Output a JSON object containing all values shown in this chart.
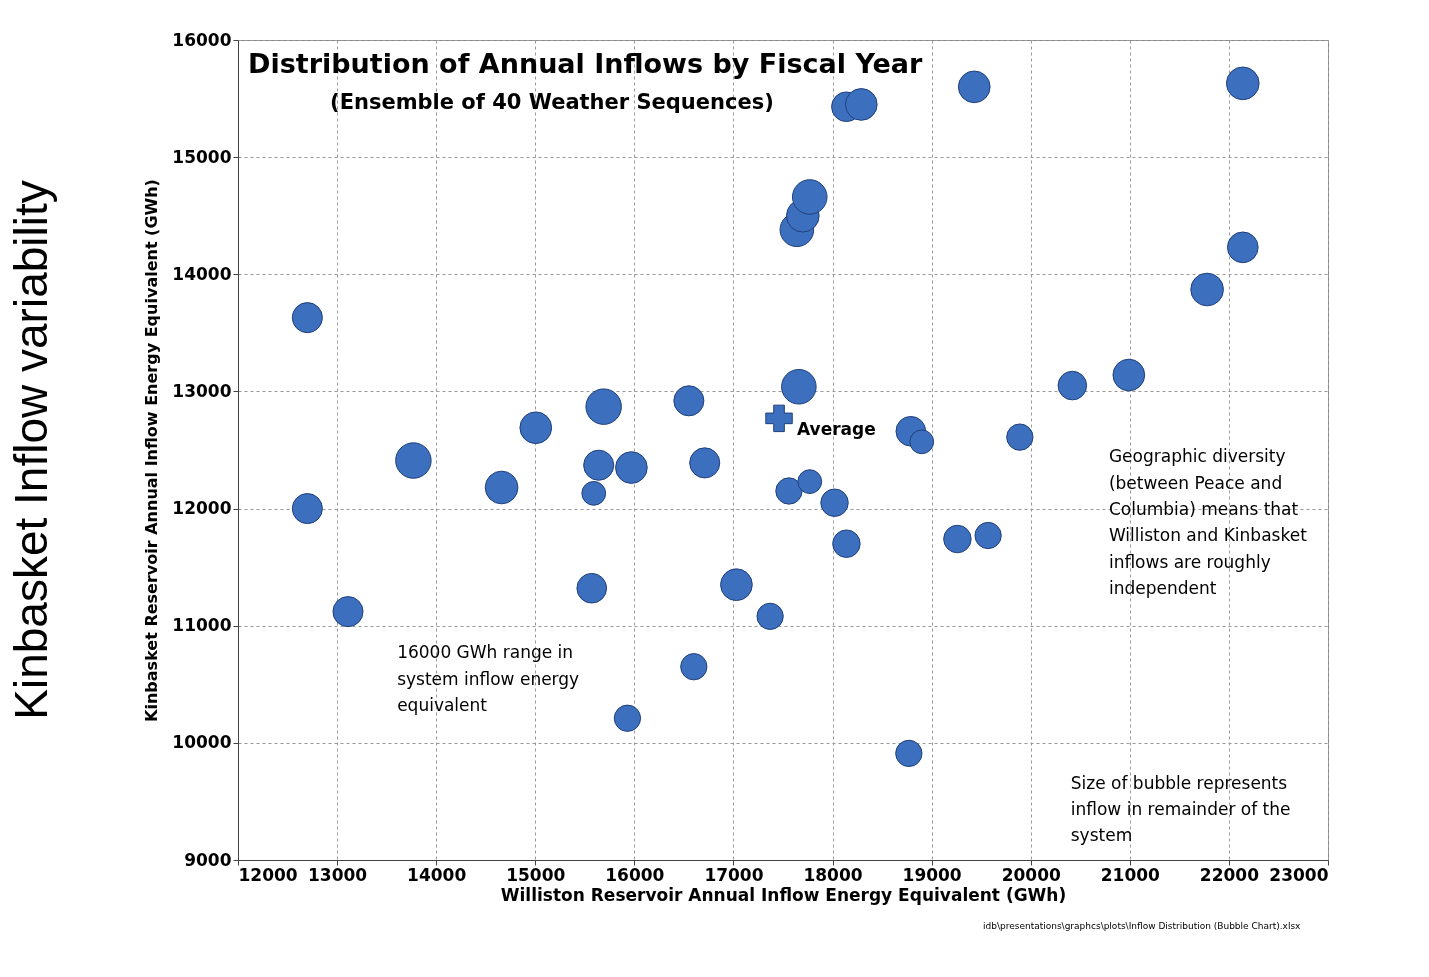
{
  "chart_data": {
    "type": "bubble",
    "title": "Distribution of Annual Inflows by Fiscal Year",
    "subtitle": "(Ensemble of 40 Weather Sequences)",
    "xlabel": "Williston Reservoir Annual  Inflow Energy Equivalent (GWh)",
    "ylabel": "Kinbasket Reservoir Annual Inflow Energy Equivalent (GWh)",
    "series": [
      {
        "color": "#3d6fbf",
        "marker": "circle",
        "x": [
          12700,
          12700,
          13110,
          13770,
          14660,
          15005,
          15570,
          15590,
          15640,
          15690,
          15970,
          15930,
          16550,
          16600,
          16710,
          17030,
          17370,
          17560,
          17770,
          18020,
          18140,
          17660,
          17640,
          17700,
          17770,
          18140,
          18290,
          18790,
          18900,
          18770,
          19260,
          19570,
          19430,
          19890,
          20420,
          20990,
          21780,
          22140,
          22140
        ],
        "values": [
          13630,
          12000,
          11120,
          12410,
          12180,
          12690,
          11320,
          12130,
          12370,
          12870,
          12350,
          10210,
          12920,
          10650,
          12390,
          11350,
          11080,
          12150,
          12230,
          12050,
          11700,
          13040,
          14380,
          14500,
          14660,
          15430,
          15450,
          12660,
          12570,
          9910,
          11740,
          11770,
          15600,
          12610,
          13050,
          13140,
          13870,
          14230,
          15630
        ],
        "sizes": [
          0.72,
          0.72,
          0.72,
          1,
          0.85,
          0.8,
          0.7,
          0.45,
          0.72,
          1,
          0.8,
          0.55,
          0.72,
          0.55,
          0.72,
          0.8,
          0.55,
          0.55,
          0.45,
          0.6,
          0.6,
          0.95,
          0.9,
          0.85,
          0.95,
          0.7,
          0.8,
          0.7,
          0.45,
          0.55,
          0.6,
          0.55,
          0.8,
          0.55,
          0.65,
          0.8,
          0.85,
          0.75,
          0.85
        ]
      },
      {
        "type": "scatter",
        "name": "Average",
        "color": "#3d6fbf",
        "marker": "cross",
        "x": [
          17460
        ],
        "values": [
          12770
        ]
      }
    ],
    "xlim": [
      12000,
      23000
    ],
    "xticks": [
      12000,
      13000,
      14000,
      15000,
      16000,
      17000,
      18000,
      19000,
      20000,
      21000,
      22000,
      23000
    ],
    "ylim": [
      9000,
      16000
    ],
    "yticks": [
      9000,
      10000,
      11000,
      12000,
      13000,
      14000,
      15000,
      16000
    ],
    "grid": true,
    "line_style": "dashed",
    "annotations": [
      "16000 GWh range in system inflow energy equivalent",
      "Geographic diversity (between Peace and Columbia) means that Williston and Kinbasket inflows are roughly independent",
      "Size of bubble represents inflow in remainder of the system",
      "Kinbasket Inflow variability",
      "idb\\presentations\\graphcs\\plots\\Inflow Distribution (Bubble Chart).xlsx"
    ]
  }
}
